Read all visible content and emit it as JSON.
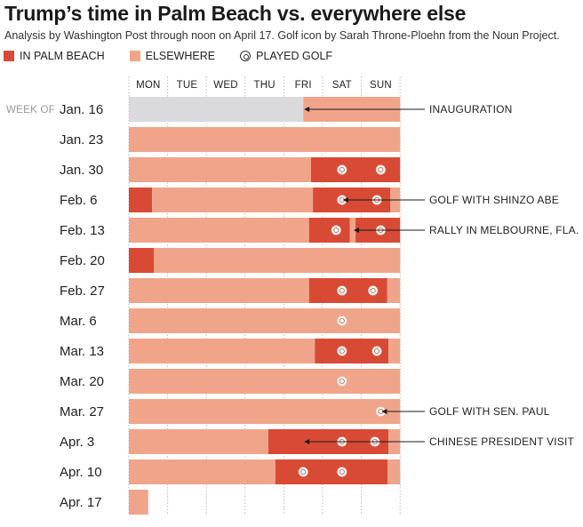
{
  "header": {
    "title": "Trump’s time in Palm Beach vs. everywhere else",
    "subtitle": "Analysis by Washington Post through noon on April 17. Golf icon by Sarah Throne-Ploehn from the Noun Project."
  },
  "legend": {
    "palm_beach": "IN PALM BEACH",
    "elsewhere": "ELSEWHERE",
    "golf": "PLAYED GOLF"
  },
  "colors": {
    "palm_beach": "#d94a35",
    "elsewhere": "#f0a58a",
    "pre_inauguration": "#d9d9de",
    "gridline": "#bbbbbb"
  },
  "chart_data": {
    "type": "timeline",
    "title": "Trump’s time in Palm Beach vs. everywhere else",
    "days": [
      "MON",
      "TUE",
      "WED",
      "THU",
      "FRI",
      "SAT",
      "SUN"
    ],
    "week_of_label": "WEEK OF",
    "units": "days from Monday start of week (0 = Mon 00:00, 7 = end of Sun)",
    "weeks": [
      {
        "label": "Jan. 16",
        "segments": [
          {
            "start": 0,
            "end": 4.5,
            "status": "pre_inauguration"
          },
          {
            "start": 4.5,
            "end": 7,
            "status": "elsewhere"
          }
        ],
        "golf": []
      },
      {
        "label": "Jan. 23",
        "segments": [
          {
            "start": 0,
            "end": 7,
            "status": "elsewhere"
          }
        ],
        "golf": []
      },
      {
        "label": "Jan. 30",
        "segments": [
          {
            "start": 0,
            "end": 4.7,
            "status": "elsewhere"
          },
          {
            "start": 4.7,
            "end": 7,
            "status": "palm_beach"
          }
        ],
        "golf": [
          5.5,
          6.5
        ]
      },
      {
        "label": "Feb. 6",
        "segments": [
          {
            "start": 0,
            "end": 0.6,
            "status": "palm_beach"
          },
          {
            "start": 0.6,
            "end": 4.75,
            "status": "elsewhere"
          },
          {
            "start": 4.75,
            "end": 6.75,
            "status": "palm_beach"
          },
          {
            "start": 6.75,
            "end": 7,
            "status": "elsewhere"
          }
        ],
        "golf": [
          5.5,
          6.4
        ]
      },
      {
        "label": "Feb. 13",
        "segments": [
          {
            "start": 0,
            "end": 4.65,
            "status": "elsewhere"
          },
          {
            "start": 4.65,
            "end": 5.7,
            "status": "palm_beach"
          },
          {
            "start": 5.7,
            "end": 5.85,
            "status": "elsewhere"
          },
          {
            "start": 5.85,
            "end": 7,
            "status": "palm_beach"
          }
        ],
        "golf": [
          5.35,
          6.5
        ]
      },
      {
        "label": "Feb. 20",
        "segments": [
          {
            "start": 0,
            "end": 0.65,
            "status": "palm_beach"
          },
          {
            "start": 0.65,
            "end": 7,
            "status": "elsewhere"
          }
        ],
        "golf": []
      },
      {
        "label": "Feb. 27",
        "segments": [
          {
            "start": 0,
            "end": 4.65,
            "status": "elsewhere"
          },
          {
            "start": 4.65,
            "end": 6.67,
            "status": "palm_beach"
          },
          {
            "start": 6.67,
            "end": 7,
            "status": "elsewhere"
          }
        ],
        "golf": [
          5.5,
          6.3
        ]
      },
      {
        "label": "Mar. 6",
        "segments": [
          {
            "start": 0,
            "end": 7,
            "status": "elsewhere"
          }
        ],
        "golf": [
          5.5
        ]
      },
      {
        "label": "Mar. 13",
        "segments": [
          {
            "start": 0,
            "end": 4.8,
            "status": "elsewhere"
          },
          {
            "start": 4.8,
            "end": 6.7,
            "status": "palm_beach"
          },
          {
            "start": 6.7,
            "end": 7,
            "status": "elsewhere"
          }
        ],
        "golf": [
          5.5,
          6.4
        ]
      },
      {
        "label": "Mar. 20",
        "segments": [
          {
            "start": 0,
            "end": 7,
            "status": "elsewhere"
          }
        ],
        "golf": [
          5.5
        ]
      },
      {
        "label": "Mar. 27",
        "segments": [
          {
            "start": 0,
            "end": 7,
            "status": "elsewhere"
          }
        ],
        "golf": [
          6.5
        ]
      },
      {
        "label": "Apr. 3",
        "segments": [
          {
            "start": 0,
            "end": 3.6,
            "status": "elsewhere"
          },
          {
            "start": 3.6,
            "end": 6.7,
            "status": "palm_beach"
          },
          {
            "start": 6.7,
            "end": 7,
            "status": "elsewhere"
          }
        ],
        "golf": [
          5.5,
          6.35
        ]
      },
      {
        "label": "Apr. 10",
        "segments": [
          {
            "start": 0,
            "end": 3.78,
            "status": "elsewhere"
          },
          {
            "start": 3.78,
            "end": 6.68,
            "status": "palm_beach"
          },
          {
            "start": 6.68,
            "end": 7,
            "status": "elsewhere"
          }
        ],
        "golf": [
          4.5,
          5.5
        ]
      },
      {
        "label": "Apr. 17",
        "segments": [
          {
            "start": 0,
            "end": 0.5,
            "status": "elsewhere"
          }
        ],
        "golf": []
      }
    ],
    "annotations": [
      {
        "text": "INAUGURATION",
        "week": 0,
        "at": 4.5
      },
      {
        "text": "GOLF WITH SHINZO ABE",
        "week": 3,
        "at": 5.5
      },
      {
        "text": "RALLY IN MELBOURNE, FLA.",
        "week": 4,
        "at": 5.78
      },
      {
        "text": "GOLF WITH SEN. PAUL",
        "week": 10,
        "at": 6.5
      },
      {
        "text": "CHINESE PRESIDENT VISIT",
        "week": 11,
        "at": 4.5
      }
    ]
  }
}
